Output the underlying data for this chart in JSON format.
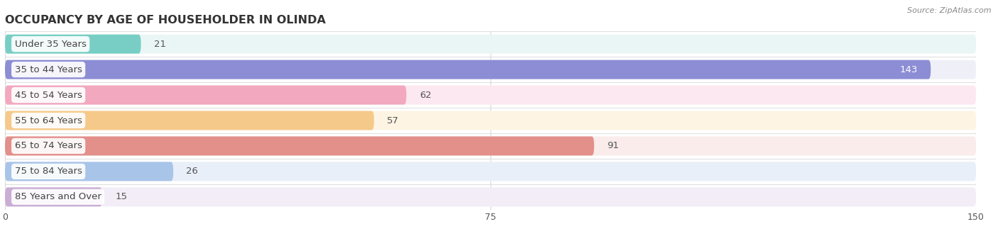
{
  "title": "OCCUPANCY BY AGE OF HOUSEHOLDER IN OLINDA",
  "source": "Source: ZipAtlas.com",
  "categories": [
    "Under 35 Years",
    "35 to 44 Years",
    "45 to 54 Years",
    "55 to 64 Years",
    "65 to 74 Years",
    "75 to 84 Years",
    "85 Years and Over"
  ],
  "values": [
    21,
    143,
    62,
    57,
    91,
    26,
    15
  ],
  "bar_colors": [
    "#78cec5",
    "#8c8dd4",
    "#f2a8bf",
    "#f5c98a",
    "#e38f8a",
    "#a8c4e8",
    "#caadd4"
  ],
  "bar_bg_colors": [
    "#eaf6f5",
    "#efeff8",
    "#fce8f0",
    "#fdf4e3",
    "#f9ecea",
    "#e8eff8",
    "#f2edf6"
  ],
  "xlim": [
    0,
    150
  ],
  "xticks": [
    0,
    75,
    150
  ],
  "label_fontsize": 9.5,
  "value_fontsize": 9.5,
  "title_fontsize": 11.5,
  "background_color": "#ffffff",
  "separator_color": "#e0e0e0",
  "grid_color": "#d8d8d8"
}
